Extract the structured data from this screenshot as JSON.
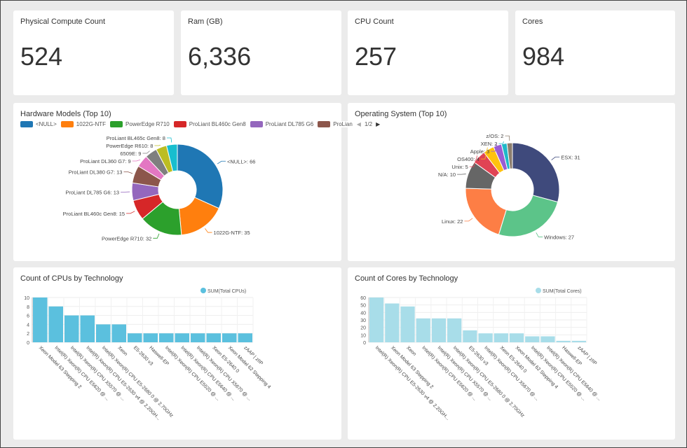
{
  "kpis": [
    {
      "title": "Physical Compute Count",
      "value": "524"
    },
    {
      "title": "Ram (GB)",
      "value": "6,336"
    },
    {
      "title": "CPU Count",
      "value": "257"
    },
    {
      "title": "Cores",
      "value": "984"
    }
  ],
  "pager": {
    "text": "1/2",
    "prev_icon": "triangle-left-icon",
    "next_icon": "triangle-right-icon"
  },
  "chart_data": [
    {
      "type": "pie",
      "title": "Hardware Models (Top 10)",
      "donut": true,
      "legend_position": "top",
      "legend": [
        "<NULL>",
        "1022G-NTF",
        "PowerEdge R710",
        "ProLiant BL460c Gen8",
        "ProLiant DL785 G6",
        "ProLian"
      ],
      "labels": [
        "<NULL>",
        "1022G-NTF",
        "PowerEdge R710",
        "ProLiant BL460c Gen8",
        "ProLiant DL785 G6",
        "ProLiant DL380 G7",
        "ProLiant DL360 G7",
        "6509E",
        "PowerEdge R610",
        "ProLiant BL465c Gen8"
      ],
      "values": [
        66,
        35,
        32,
        15,
        13,
        13,
        9,
        9,
        8,
        8
      ],
      "colors": [
        "#1f77b4",
        "#ff7f0e",
        "#2ca02c",
        "#d62728",
        "#9467bd",
        "#8c564b",
        "#e377c2",
        "#7f7f7f",
        "#bcbd22",
        "#17becf"
      ]
    },
    {
      "type": "pie",
      "title": "Operating System (Top 10)",
      "donut": true,
      "labels": [
        "ESX",
        "Windows",
        "Linux",
        "N/A",
        "Unix",
        "OS400",
        "Apple",
        "XEN",
        "z/OS"
      ],
      "values": [
        31,
        27,
        22,
        10,
        5,
        4,
        3,
        2,
        2
      ],
      "colors": [
        "#3f4a7c",
        "#5cc489",
        "#fd7e45",
        "#666666",
        "#e04354",
        "#ffc20e",
        "#9a5cd3",
        "#1fb8c9",
        "#8c7e6e"
      ]
    },
    {
      "type": "bar",
      "title": "Count of CPUs by Technology",
      "legend_position": "top-right",
      "grid": true,
      "series": [
        {
          "name": "SUM(Total CPUs)",
          "color": "#5bc0de",
          "values": [
            10,
            8,
            6,
            6,
            4,
            4,
            2,
            2,
            2,
            2,
            2,
            2,
            2,
            2
          ]
        }
      ],
      "categories": [
        "Xeon Model 63 Stepping 2",
        "Intel(R) Xeon(R) CPU E5620 @ ...",
        "Intel(R) Xeon(R) CPU X5570 @ ...",
        "Intel(R) Xeon(R) CPU E5-2630 v4 @ 2.20GH...",
        "Intel(R) Xeon(R) CPU E5-2680 0 @ 2.70GHz",
        "Xeon",
        "E5-2630 v3",
        "Haswell-EP",
        "Intel(R) Xeon(R) CPU E5520 @ ...",
        "Intel(R) Xeon(R) CPU E5640 @ ...",
        "Intel(R) Xeon(R) CPU X5670 @ ...",
        "Xeon E5-2640 0",
        "Xeon Model 62 Stepping 4",
        "zAAP | zIIP"
      ],
      "yticks": [
        0,
        2,
        4,
        6,
        8,
        10
      ],
      "ylim": [
        0,
        10
      ]
    },
    {
      "type": "bar",
      "title": "Count of Cores by Technology",
      "legend_position": "top-right",
      "grid": true,
      "series": [
        {
          "name": "SUM(Total Cores)",
          "color": "#a8dde9",
          "values": [
            60,
            52,
            48,
            32,
            32,
            32,
            16,
            12,
            12,
            12,
            8,
            8,
            2,
            2
          ]
        }
      ],
      "categories": [
        "Intel(R) Xeon(R) CPU E5-2630 v4 @ 2.20GH...",
        "Xeon Model 63 Stepping 2",
        "Xeon",
        "Intel(R) Xeon(R) CPU E5620 @ ...",
        "Intel(R) Xeon(R) CPU X5570 @ ...",
        "Intel(R) Xeon(R) CPU E5-2680 0 @ 2.70GHz",
        "E5-2630 v3",
        "Intel(R) Xeon(R) CPU X5670 @ ...",
        "Xeon E5-2640 0",
        "Xeon Model 62 Stepping 4",
        "Intel(R) Xeon(R) CPU E5520 @ ...",
        "Intel(R) Xeon(R) CPU E5640 @ ...",
        "Haswell-EP",
        "zAAP | zIIP"
      ],
      "yticks": [
        0,
        10,
        20,
        30,
        40,
        50,
        60
      ],
      "ylim": [
        0,
        60
      ]
    }
  ]
}
